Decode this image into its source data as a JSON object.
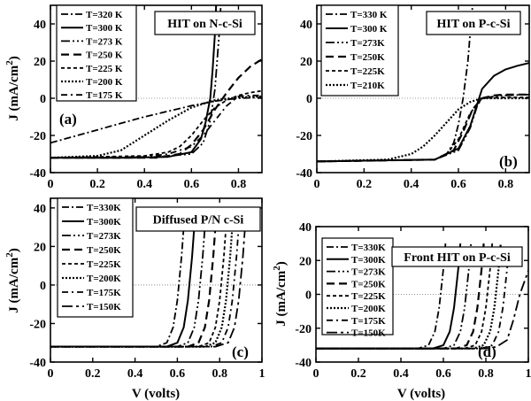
{
  "chart_data": [
    {
      "type": "line",
      "title": "HIT on N-c-Si",
      "panel_label": "(a)",
      "ylabel": "J (mA/cm",
      "ylabel_sup": "2",
      "ylabel_close": ")",
      "xlabel": "",
      "xlim": [
        0,
        0.9
      ],
      "ylim": [
        -40,
        50
      ],
      "xticks": [
        0,
        0.2,
        0.4,
        0.6,
        0.8
      ],
      "xtick_labels": [
        "0",
        "0.2",
        "0.4",
        "0.6",
        "0.8"
      ],
      "yticks": [
        -40,
        -20,
        0,
        20,
        40
      ],
      "ytick_labels": [
        "-40",
        "-20",
        "0",
        "20",
        "40"
      ],
      "legend_position": "top-left",
      "series": [
        {
          "name": "T=320 K",
          "dash": "8,3,2,3",
          "width": 1.8,
          "x": [
            0,
            0.1,
            0.2,
            0.3,
            0.4,
            0.5,
            0.6,
            0.7,
            0.8,
            0.9
          ],
          "y": [
            -24,
            -20.5,
            -17,
            -13.5,
            -10,
            -7,
            -4,
            -1.5,
            0,
            0.5
          ]
        },
        {
          "name": "T=300 K",
          "dash": "",
          "width": 2,
          "x": [
            0,
            0.3,
            0.5,
            0.6,
            0.64,
            0.66,
            0.68,
            0.69,
            0.7,
            0.705
          ],
          "y": [
            -32,
            -32,
            -31.5,
            -29,
            -22,
            -13,
            0,
            15,
            35,
            50
          ]
        },
        {
          "name": "T=273 K",
          "dash": "10,3,2,3,2,3",
          "width": 1.8,
          "x": [
            0,
            0.4,
            0.6,
            0.65,
            0.68,
            0.7,
            0.72,
            0.725
          ],
          "y": [
            -32,
            -32,
            -30,
            -24,
            -12,
            5,
            38,
            50
          ]
        },
        {
          "name": "T=250 K",
          "dash": "9,5",
          "width": 2.2,
          "x": [
            0,
            0.45,
            0.55,
            0.6,
            0.65,
            0.7,
            0.75,
            0.8,
            0.85,
            0.9
          ],
          "y": [
            -32,
            -32,
            -30,
            -25,
            -17,
            -6,
            3,
            11,
            17,
            21
          ]
        },
        {
          "name": "T=225 K",
          "dash": "4,3",
          "width": 1.8,
          "x": [
            0,
            0.4,
            0.5,
            0.55,
            0.6,
            0.65,
            0.7,
            0.75,
            0.8,
            0.85,
            0.9
          ],
          "y": [
            -32,
            -31,
            -29,
            -26,
            -20,
            -12,
            -5,
            -1,
            1.5,
            3,
            4
          ]
        },
        {
          "name": "T=200 K",
          "dash": "2,2",
          "width": 2.2,
          "x": [
            0,
            0.2,
            0.3,
            0.4,
            0.5,
            0.6,
            0.7,
            0.8,
            0.9
          ],
          "y": [
            -32,
            -31,
            -28,
            -20,
            -12,
            -5,
            -1,
            0.5,
            1
          ]
        },
        {
          "name": "T=175 K",
          "dash": "7,4,2,4",
          "width": 1.8,
          "x": [
            0,
            0.4,
            0.5,
            0.6,
            0.65,
            0.7,
            0.75,
            0.8,
            0.85,
            0.9
          ],
          "y": [
            -32,
            -31.5,
            -30,
            -26,
            -20,
            -12,
            -4,
            1,
            1.5,
            1.5
          ]
        }
      ]
    },
    {
      "type": "line",
      "title": "HIT on P-c-Si",
      "panel_label": "(b)",
      "ylabel": "",
      "xlabel": "",
      "xlim": [
        0,
        0.9
      ],
      "ylim": [
        -40,
        50
      ],
      "xticks": [
        0,
        0.2,
        0.4,
        0.6,
        0.8
      ],
      "xtick_labels": [
        "0",
        "0.2",
        "0.4",
        "0.6",
        "0.8"
      ],
      "yticks": [
        -40,
        -20,
        0,
        20,
        40
      ],
      "ytick_labels": [
        "-40",
        "-20",
        "0",
        "20",
        "40"
      ],
      "legend_position": "top-left",
      "series": [
        {
          "name": "T=330 K",
          "dash": "8,3,2,3",
          "width": 1.8,
          "x": [
            0,
            0.5,
            0.55,
            0.58,
            0.6,
            0.62,
            0.64,
            0.65,
            0.66
          ],
          "y": [
            -34,
            -33,
            -30,
            -24,
            -14,
            0,
            20,
            35,
            50
          ]
        },
        {
          "name": "T=300 K",
          "dash": "",
          "width": 2,
          "x": [
            0,
            0.5,
            0.6,
            0.65,
            0.68,
            0.7,
            0.75,
            0.8,
            0.85,
            0.9
          ],
          "y": [
            -34,
            -33,
            -27,
            -15,
            -3,
            5,
            12,
            15.5,
            17.5,
            19
          ]
        },
        {
          "name": "T=273K",
          "dash": "10,3,2,3,2,3",
          "width": 1.8,
          "x": [
            0,
            0.5,
            0.6,
            0.65,
            0.68,
            0.7,
            0.75,
            0.8,
            0.9
          ],
          "y": [
            -34,
            -33,
            -28,
            -16,
            -4,
            0,
            1,
            1.5,
            2
          ]
        },
        {
          "name": "T=250K",
          "dash": "9,5",
          "width": 2.2,
          "x": [
            0,
            0.5,
            0.58,
            0.62,
            0.66,
            0.7,
            0.75,
            0.8,
            0.9
          ],
          "y": [
            -34,
            -33,
            -28,
            -18,
            -6,
            0,
            1.5,
            2,
            2
          ]
        },
        {
          "name": "T=225K",
          "dash": "4,3",
          "width": 1.8,
          "x": [
            0,
            0.5,
            0.55,
            0.6,
            0.65,
            0.7,
            0.8,
            0.9
          ],
          "y": [
            -34,
            -33,
            -30,
            -22,
            -8,
            0,
            0.5,
            0.5
          ]
        },
        {
          "name": "T=210K",
          "dash": "2,2",
          "width": 2.2,
          "x": [
            0,
            0.3,
            0.4,
            0.45,
            0.5,
            0.55,
            0.6,
            0.65,
            0.7,
            0.8,
            0.9
          ],
          "y": [
            -34,
            -33,
            -30,
            -26,
            -20,
            -13,
            -6,
            -2,
            0,
            0,
            0
          ]
        }
      ]
    },
    {
      "type": "line",
      "title": "Diffused P/N c-Si",
      "panel_label": "(c)",
      "ylabel": "J (mA/cm",
      "ylabel_sup": "2",
      "ylabel_close": ")",
      "xlabel": "V (volts)",
      "xlim": [
        0,
        1
      ],
      "ylim": [
        -40,
        45
      ],
      "xticks": [
        0,
        0.2,
        0.4,
        0.6,
        0.8,
        1
      ],
      "xtick_labels": [
        "0",
        "0.2",
        "0.4",
        "0.6",
        "0.8",
        "1"
      ],
      "yticks": [
        -40,
        -20,
        0,
        20,
        40
      ],
      "ytick_labels": [
        "-40",
        "-20",
        "0",
        "20",
        "40"
      ],
      "legend_position": "top-left",
      "series": [
        {
          "name": "T=330K",
          "dash": "8,3,2,3",
          "width": 1.8,
          "x": [
            0,
            0.5,
            0.55,
            0.58,
            0.6,
            0.62,
            0.63
          ],
          "y": [
            -32,
            -32,
            -30,
            -22,
            -8,
            15,
            30
          ]
        },
        {
          "name": "T=300K",
          "dash": "",
          "width": 2,
          "x": [
            0,
            0.55,
            0.6,
            0.63,
            0.65,
            0.67,
            0.68
          ],
          "y": [
            -32,
            -32,
            -30,
            -22,
            -8,
            15,
            30
          ]
        },
        {
          "name": "T=273K",
          "dash": "10,3,2,3,2,3",
          "width": 1.8,
          "x": [
            0,
            0.6,
            0.65,
            0.68,
            0.7,
            0.72,
            0.73
          ],
          "y": [
            -32,
            -32,
            -30,
            -22,
            -8,
            15,
            30
          ]
        },
        {
          "name": "T=250K",
          "dash": "9,5",
          "width": 2.2,
          "x": [
            0,
            0.65,
            0.7,
            0.73,
            0.75,
            0.77,
            0.78
          ],
          "y": [
            -32,
            -32,
            -30,
            -22,
            -8,
            15,
            30
          ]
        },
        {
          "name": "T=225K",
          "dash": "4,3",
          "width": 1.8,
          "x": [
            0,
            0.7,
            0.75,
            0.78,
            0.8,
            0.82,
            0.83
          ],
          "y": [
            -32,
            -32,
            -30,
            -22,
            -8,
            15,
            30
          ]
        },
        {
          "name": "T=200K",
          "dash": "2,2",
          "width": 2.2,
          "x": [
            0,
            0.73,
            0.78,
            0.81,
            0.83,
            0.85,
            0.86
          ],
          "y": [
            -32,
            -32,
            -30,
            -22,
            -8,
            15,
            30
          ]
        },
        {
          "name": "T=175K",
          "dash": "7,4,2,4",
          "width": 1.8,
          "x": [
            0,
            0.76,
            0.81,
            0.84,
            0.86,
            0.88,
            0.89
          ],
          "y": [
            -32,
            -32,
            -30,
            -22,
            -8,
            15,
            30
          ]
        },
        {
          "name": "T=150K",
          "dash": "12,4,3,4",
          "width": 1.8,
          "x": [
            0,
            0.78,
            0.84,
            0.87,
            0.89,
            0.91,
            0.92
          ],
          "y": [
            -32,
            -32,
            -30,
            -22,
            -8,
            15,
            30
          ]
        }
      ]
    },
    {
      "type": "line",
      "title": "Front HIT on  P-c-Si",
      "panel_label": "(d)",
      "ylabel": "J (mA/cm",
      "ylabel_sup": "2",
      "ylabel_close": ")",
      "xlabel": "V (volts)",
      "xlim": [
        0,
        1
      ],
      "ylim": [
        -40,
        40
      ],
      "xticks": [
        0,
        0.2,
        0.4,
        0.6,
        0.8,
        1
      ],
      "xtick_labels": [
        "0",
        "0.2",
        "0.4",
        "0.6",
        "0.8",
        "1"
      ],
      "yticks": [
        -40,
        -20,
        0,
        20,
        40
      ],
      "ytick_labels": [
        "-40",
        "-20",
        "0",
        "20",
        "40"
      ],
      "legend_position": "top-left",
      "series": [
        {
          "name": "T=330K",
          "dash": "8,3,2,3",
          "width": 1.8,
          "x": [
            0,
            0.48,
            0.53,
            0.56,
            0.58,
            0.6,
            0.61
          ],
          "y": [
            -32,
            -32,
            -30,
            -22,
            -8,
            15,
            30
          ]
        },
        {
          "name": "T=300K",
          "dash": "",
          "width": 2,
          "x": [
            0,
            0.55,
            0.6,
            0.63,
            0.65,
            0.67,
            0.68
          ],
          "y": [
            -32,
            -32,
            -30,
            -22,
            -8,
            15,
            30
          ]
        },
        {
          "name": "T=273K",
          "dash": "10,3,2,3,2,3",
          "width": 1.8,
          "x": [
            0,
            0.6,
            0.65,
            0.68,
            0.7,
            0.72,
            0.73
          ],
          "y": [
            -32,
            -32,
            -30,
            -22,
            -8,
            15,
            30
          ]
        },
        {
          "name": "T=250K",
          "dash": "9,5",
          "width": 2.2,
          "x": [
            0,
            0.66,
            0.71,
            0.74,
            0.76,
            0.78,
            0.79
          ],
          "y": [
            -32,
            -32,
            -30,
            -22,
            -8,
            15,
            30
          ]
        },
        {
          "name": "T=225K",
          "dash": "4,3",
          "width": 1.8,
          "x": [
            0,
            0.7,
            0.75,
            0.78,
            0.8,
            0.82,
            0.83
          ],
          "y": [
            -32,
            -32,
            -30,
            -22,
            -8,
            15,
            30
          ]
        },
        {
          "name": "T=200K",
          "dash": "2,2",
          "width": 2.2,
          "x": [
            0,
            0.74,
            0.79,
            0.82,
            0.84,
            0.86,
            0.87
          ],
          "y": [
            -32,
            -32,
            -30,
            -22,
            -8,
            15,
            30
          ]
        },
        {
          "name": "T=175K",
          "dash": "7,4,2,4",
          "width": 1.8,
          "x": [
            0,
            0.78,
            0.83,
            0.86,
            0.88,
            0.9,
            0.91
          ],
          "y": [
            -32,
            -32,
            -30,
            -22,
            -8,
            15,
            30
          ]
        },
        {
          "name": "T=150K",
          "dash": "12,4,3,4",
          "width": 1.8,
          "x": [
            0,
            0.8,
            0.85,
            0.9,
            0.93,
            0.96,
            1.0
          ],
          "y": [
            -32,
            -32,
            -31,
            -27,
            -15,
            0,
            14
          ]
        }
      ]
    }
  ]
}
